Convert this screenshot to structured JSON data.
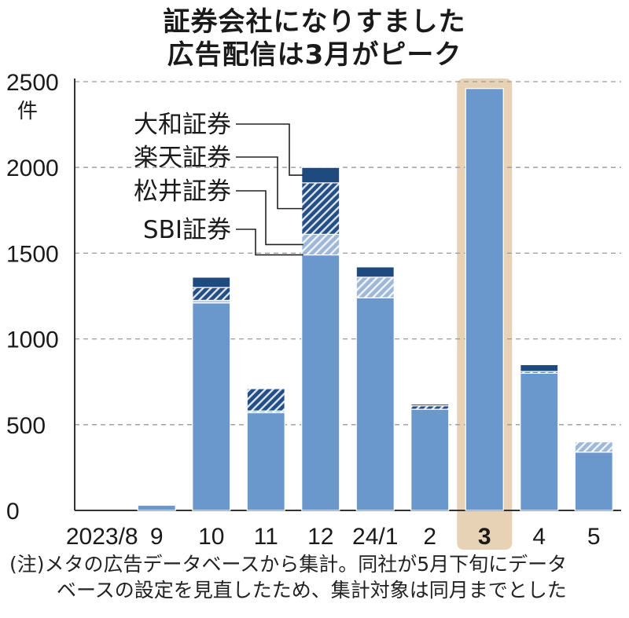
{
  "title_lines": [
    "証券会社になりすました",
    "広告配信は3月がピーク"
  ],
  "note_lines": [
    "(注)メタの広告データベースから集計。同社が5月下旬にデータ",
    "ベースの設定を見直したため、集計対象は同月までとした"
  ],
  "colors": {
    "base": "#6a97cc",
    "sbi": "#b9cde4",
    "matsui": "#9fb8d8",
    "rakuten": "#244f86",
    "daiwa": "#1e4a80",
    "highlight": "#e8d2b5",
    "grid": "#9a9a9a",
    "text": "#1a1a1a"
  },
  "chart_data": {
    "type": "bar",
    "stacked": true,
    "highlight_category": "3",
    "categories": [
      "2023/8",
      "9",
      "10",
      "11",
      "12",
      "24/1",
      "2",
      "3",
      "4",
      "5"
    ],
    "ylim": [
      0,
      2500
    ],
    "yticks": [
      0,
      500,
      1000,
      1500,
      2000,
      2500
    ],
    "yunit": "件",
    "grid": true,
    "series": [
      {
        "name": "",
        "key": "base",
        "pattern": "solid",
        "values": [
          0,
          30,
          1210,
          570,
          1490,
          1240,
          590,
          2460,
          800,
          340
        ]
      },
      {
        "name": "SBI証券",
        "key": "sbi",
        "pattern": "solid",
        "values": [
          0,
          0,
          15,
          0,
          0,
          0,
          0,
          0,
          0,
          0
        ]
      },
      {
        "name": "松井証券",
        "key": "matsui",
        "pattern": "hatch",
        "values": [
          0,
          0,
          0,
          10,
          120,
          120,
          0,
          0,
          0,
          60
        ]
      },
      {
        "name": "楽天証券",
        "key": "rakuten",
        "pattern": "hatch",
        "values": [
          0,
          0,
          75,
          130,
          300,
          0,
          20,
          0,
          10,
          0
        ]
      },
      {
        "name": "大和証券",
        "key": "daiwa",
        "pattern": "solid",
        "values": [
          0,
          0,
          60,
          0,
          90,
          60,
          10,
          0,
          40,
          0
        ]
      }
    ],
    "legend_order": [
      "大和証券",
      "楽天証券",
      "松井証券",
      "SBI証券"
    ]
  }
}
